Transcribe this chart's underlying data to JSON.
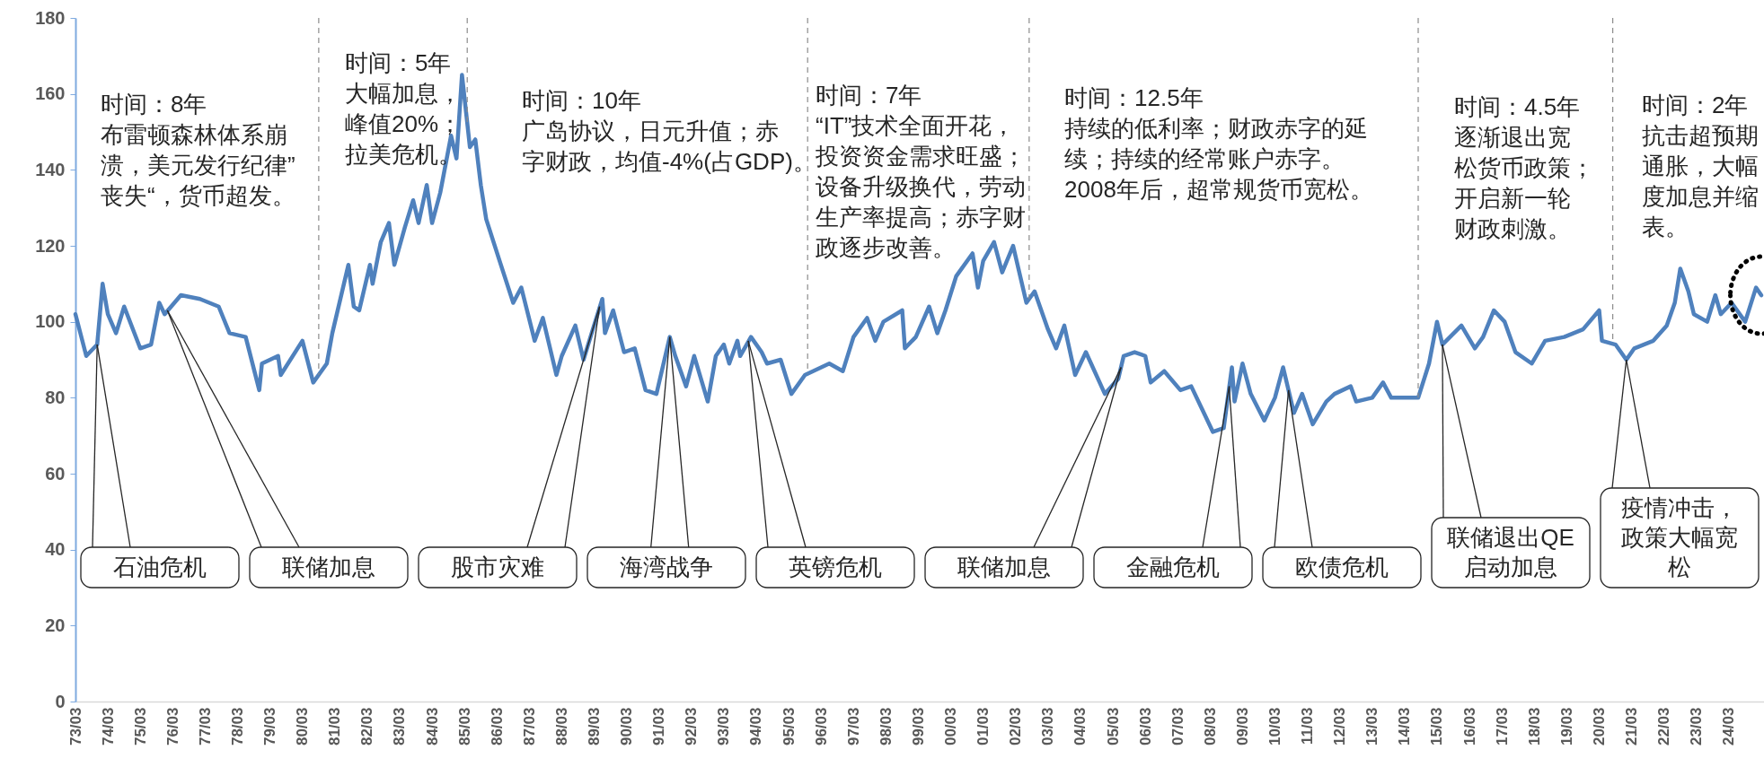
{
  "chart_data": {
    "type": "line",
    "x": [
      "1973-03",
      "1973-07",
      "1973-11",
      "1974-01",
      "1974-03",
      "1974-06",
      "1974-09",
      "1975-03",
      "1975-07",
      "1975-10",
      "1975-12",
      "1976-06",
      "1977-01",
      "1977-08",
      "1977-12",
      "1978-06",
      "1978-11",
      "1978-12",
      "1979-06",
      "1979-07",
      "1980-03",
      "1980-07",
      "1980-12",
      "1981-02",
      "1981-08",
      "1981-10",
      "1981-12",
      "1982-04",
      "1982-05",
      "1982-08",
      "1982-11",
      "1983-01",
      "1983-05",
      "1983-08",
      "1983-10",
      "1984-01",
      "1984-03",
      "1984-06",
      "1984-10",
      "1984-12",
      "1985-02",
      "1985-05",
      "1985-07",
      "1985-09",
      "1985-11",
      "1986-04",
      "1986-09",
      "1986-12",
      "1987-05",
      "1987-08",
      "1988-01",
      "1988-03",
      "1988-08",
      "1988-11",
      "1989-02",
      "1989-06",
      "1989-07",
      "1989-10",
      "1990-02",
      "1990-06",
      "1990-10",
      "1991-02",
      "1991-07",
      "1991-09",
      "1992-01",
      "1992-04",
      "1992-09",
      "1992-12",
      "1993-03",
      "1993-05",
      "1993-08",
      "1993-09",
      "1994-01",
      "1994-05",
      "1994-07",
      "1994-12",
      "1995-04",
      "1995-09",
      "1996-06",
      "1996-11",
      "1997-03",
      "1997-08",
      "1997-11",
      "1998-02",
      "1998-09",
      "1998-10",
      "1999-02",
      "1999-07",
      "1999-10",
      "2000-01",
      "2000-05",
      "2000-11",
      "2001-01",
      "2001-03",
      "2001-07",
      "2001-10",
      "2002-02",
      "2002-07",
      "2002-10",
      "2003-03",
      "2003-06",
      "2003-09",
      "2004-01",
      "2004-05",
      "2004-12",
      "2005-05",
      "2005-07",
      "2005-11",
      "2006-03",
      "2006-05",
      "2006-10",
      "2007-04",
      "2007-08",
      "2007-12",
      "2008-04",
      "2008-08",
      "2008-11",
      "2008-12",
      "2009-03",
      "2009-06",
      "2009-11",
      "2010-03",
      "2010-06",
      "2010-10",
      "2011-01",
      "2011-05",
      "2011-10",
      "2012-01",
      "2012-07",
      "2012-09",
      "2013-03",
      "2013-07",
      "2013-10",
      "2014-04",
      "2014-08",
      "2014-12",
      "2015-03",
      "2015-05",
      "2015-12",
      "2016-05",
      "2016-08",
      "2016-12",
      "2017-04",
      "2017-08",
      "2018-02",
      "2018-07",
      "2019-02",
      "2019-09",
      "2020-03",
      "2020-04",
      "2020-09",
      "2021-01",
      "2021-04",
      "2021-11",
      "2022-04",
      "2022-07",
      "2022-09",
      "2022-12",
      "2023-02",
      "2023-07",
      "2023-10",
      "2023-12",
      "2024-04",
      "2024-09",
      "2025-01",
      "2025-03"
    ],
    "values": [
      102,
      91,
      94,
      110,
      102,
      97,
      104,
      93,
      94,
      105,
      102,
      107,
      106,
      104,
      97,
      96,
      82,
      89,
      91,
      86,
      95,
      84,
      89,
      97,
      115,
      104,
      103,
      115,
      110,
      121,
      126,
      115,
      125,
      132,
      126,
      136,
      126,
      134,
      149,
      143,
      165,
      146,
      148,
      136,
      127,
      116,
      105,
      109,
      95,
      101,
      86,
      91,
      99,
      90,
      97,
      106,
      97,
      103,
      92,
      93,
      82,
      81,
      96,
      91,
      83,
      91,
      79,
      91,
      94,
      89,
      95,
      91,
      96,
      92,
      89,
      90,
      81,
      86,
      89,
      87,
      96,
      101,
      95,
      100,
      103,
      93,
      96,
      104,
      97,
      103,
      112,
      118,
      109,
      116,
      121,
      113,
      120,
      105,
      108,
      98,
      93,
      99,
      86,
      92,
      81,
      85,
      91,
      92,
      91,
      84,
      87,
      82,
      83,
      77,
      71,
      72,
      88,
      79,
      89,
      81,
      74,
      80,
      88,
      76,
      81,
      73,
      79,
      81,
      83,
      79,
      80,
      84,
      80,
      80,
      80,
      89,
      100,
      94,
      99,
      93,
      96,
      103,
      100,
      92,
      89,
      95,
      96,
      98,
      103,
      95,
      94,
      90,
      93,
      95,
      99,
      105,
      114,
      108,
      102,
      100,
      107,
      102,
      105,
      100,
      109,
      107
    ],
    "color": "#4f81bd",
    "xlim": [
      "1973-03",
      "2025-04"
    ],
    "xticks": [
      {
        "value": "1973-03",
        "label": "73/03"
      },
      {
        "value": "1974-03",
        "label": "74/03"
      },
      {
        "value": "1975-03",
        "label": "75/03"
      },
      {
        "value": "1976-03",
        "label": "76/03"
      },
      {
        "value": "1977-03",
        "label": "77/03"
      },
      {
        "value": "1978-03",
        "label": "78/03"
      },
      {
        "value": "1979-03",
        "label": "79/03"
      },
      {
        "value": "1980-03",
        "label": "80/03"
      },
      {
        "value": "1981-03",
        "label": "81/03"
      },
      {
        "value": "1982-03",
        "label": "82/03"
      },
      {
        "value": "1983-03",
        "label": "83/03"
      },
      {
        "value": "1984-03",
        "label": "84/03"
      },
      {
        "value": "1985-03",
        "label": "85/03"
      },
      {
        "value": "1986-03",
        "label": "86/03"
      },
      {
        "value": "1987-03",
        "label": "87/03"
      },
      {
        "value": "1988-03",
        "label": "88/03"
      },
      {
        "value": "1989-03",
        "label": "89/03"
      },
      {
        "value": "1990-03",
        "label": "90/03"
      },
      {
        "value": "1991-03",
        "label": "91/03"
      },
      {
        "value": "1992-03",
        "label": "92/03"
      },
      {
        "value": "1993-03",
        "label": "93/03"
      },
      {
        "value": "1994-03",
        "label": "94/03"
      },
      {
        "value": "1995-03",
        "label": "95/03"
      },
      {
        "value": "1996-03",
        "label": "96/03"
      },
      {
        "value": "1997-03",
        "label": "97/03"
      },
      {
        "value": "1998-03",
        "label": "98/03"
      },
      {
        "value": "1999-03",
        "label": "99/03"
      },
      {
        "value": "2000-03",
        "label": "00/03"
      },
      {
        "value": "2001-03",
        "label": "01/03"
      },
      {
        "value": "2002-03",
        "label": "02/03"
      },
      {
        "value": "2003-03",
        "label": "03/03"
      },
      {
        "value": "2004-03",
        "label": "04/03"
      },
      {
        "value": "2005-03",
        "label": "05/03"
      },
      {
        "value": "2006-03",
        "label": "06/03"
      },
      {
        "value": "2007-03",
        "label": "07/03"
      },
      {
        "value": "2008-03",
        "label": "08/03"
      },
      {
        "value": "2009-03",
        "label": "09/03"
      },
      {
        "value": "2010-03",
        "label": "10/03"
      },
      {
        "value": "2011-03",
        "label": "11/03"
      },
      {
        "value": "2012-03",
        "label": "12/03"
      },
      {
        "value": "2013-03",
        "label": "13/03"
      },
      {
        "value": "2014-03",
        "label": "14/03"
      },
      {
        "value": "2015-03",
        "label": "15/03"
      },
      {
        "value": "2016-03",
        "label": "16/03"
      },
      {
        "value": "2017-03",
        "label": "17/03"
      },
      {
        "value": "2018-03",
        "label": "18/03"
      },
      {
        "value": "2019-03",
        "label": "19/03"
      },
      {
        "value": "2020-03",
        "label": "20/03"
      },
      {
        "value": "2021-03",
        "label": "21/03"
      },
      {
        "value": "2022-03",
        "label": "22/03"
      },
      {
        "value": "2023-03",
        "label": "23/03"
      },
      {
        "value": "2024-03",
        "label": "24/03"
      }
    ],
    "ylim": [
      0,
      180
    ],
    "yticks": [
      0,
      20,
      40,
      60,
      80,
      100,
      120,
      140,
      160,
      180
    ],
    "ref_lines": [
      {
        "axis": "x",
        "value": "1980-09",
        "color": "#8c8c8c",
        "line_style": "dashed"
      },
      {
        "axis": "x",
        "value": "1985-04",
        "color": "#8c8c8c",
        "line_style": "dashed"
      },
      {
        "axis": "x",
        "value": "1995-10",
        "color": "#8c8c8c",
        "line_style": "dashed"
      },
      {
        "axis": "x",
        "value": "2002-08",
        "color": "#8c8c8c",
        "line_style": "dashed"
      },
      {
        "axis": "x",
        "value": "2014-08",
        "color": "#8c8c8c",
        "line_style": "dashed"
      },
      {
        "axis": "x",
        "value": "2020-08",
        "color": "#8c8c8c",
        "line_style": "dashed"
      }
    ],
    "annotations": [
      "时间：8年",
      "布雷顿森林体系崩溃，美元发行纪律”丧失“，货币超发。",
      "时间：5年",
      "大幅加息，峰值20%；拉美危机。",
      "时间：10年",
      "广岛协议，日元升值；赤字财政，均值-4%(占GDP)。",
      "时间：7年",
      "“IT”技术全面开花，投资资金需求旺盛；设备升级换代，劳动生产率提高；赤字财政逐步改善。",
      "时间：12.5年",
      "持续的低利率；财政赤字的延续；持续的经常账户赤字。2008年后，超常规货币宽松。",
      "时间：4.5年",
      "逐渐退出宽松货币政策；开启新一轮财政刺激。",
      "时间：2年",
      "抗击超预期通胀，大幅度加息并缩表。",
      {
        "text": "石油危机",
        "x": "1973-11",
        "y": 94
      },
      {
        "text": "联储加息",
        "x": "1976-01",
        "y": 103
      },
      {
        "text": "股市灾难",
        "x": "1989-05",
        "y": 104
      },
      {
        "text": "海湾战争",
        "x": "1991-07",
        "y": 96
      },
      {
        "text": "英镑危机",
        "x": "1993-12",
        "y": 95
      },
      {
        "text": "联储加息",
        "x": "2005-06",
        "y": 88
      },
      {
        "text": "金融危机",
        "x": "2008-10",
        "y": 83
      },
      {
        "text": "欧债危机",
        "x": "2010-08",
        "y": 82
      },
      {
        "text": "联储退出QE启动加息",
        "x": "2015-05",
        "y": 94
      },
      {
        "text": "疫情冲击，政策大幅宽松",
        "x": "2021-01",
        "y": 90
      }
    ]
  }
}
